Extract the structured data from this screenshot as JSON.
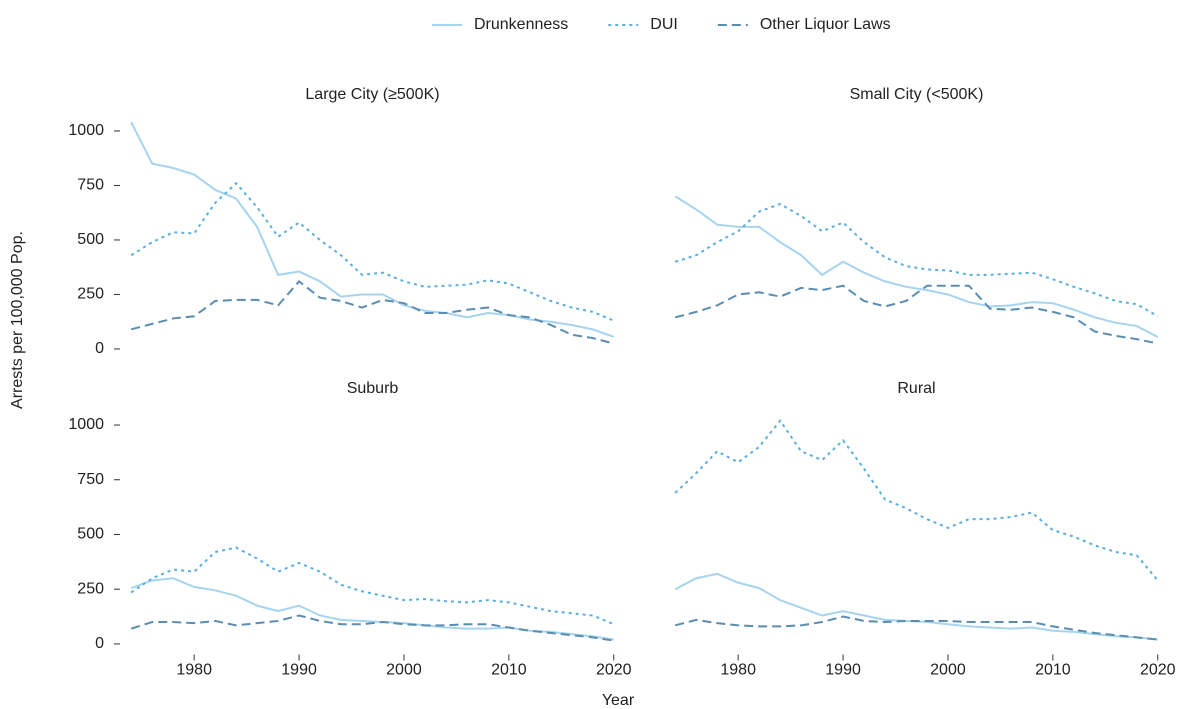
{
  "x_label": "Year",
  "y_label": "Arrests per 100,000 Pop.",
  "chart_data": [
    {
      "type": "line",
      "title": "Large City (≥500K)",
      "x": [
        1974,
        1976,
        1978,
        1980,
        1982,
        1984,
        1986,
        1988,
        1990,
        1992,
        1994,
        1996,
        1998,
        2000,
        2002,
        2004,
        2006,
        2008,
        2010,
        2012,
        2014,
        2016,
        2018,
        2020
      ],
      "series": [
        {
          "name": "Drunkenness",
          "color": "#a6d4f0",
          "dash": "solid",
          "values": [
            1040,
            850,
            830,
            800,
            730,
            690,
            560,
            340,
            355,
            310,
            240,
            250,
            250,
            200,
            175,
            165,
            145,
            165,
            155,
            135,
            125,
            110,
            90,
            55
          ]
        },
        {
          "name": "DUI",
          "color": "#5aaee0",
          "dash": "dotted",
          "values": [
            430,
            490,
            535,
            530,
            670,
            760,
            650,
            515,
            580,
            500,
            430,
            340,
            350,
            310,
            285,
            290,
            295,
            315,
            300,
            260,
            220,
            190,
            170,
            130
          ]
        },
        {
          "name": "Other Liquor Laws",
          "color": "#5b8db0",
          "dash": "dashed",
          "values": [
            90,
            115,
            140,
            150,
            220,
            225,
            225,
            200,
            310,
            235,
            220,
            190,
            225,
            210,
            165,
            165,
            180,
            190,
            155,
            145,
            110,
            65,
            50,
            25
          ]
        }
      ],
      "xlim": [
        1973.5,
        2020.5
      ],
      "ylim": [
        -30,
        1070
      ],
      "yticks": [
        0,
        250,
        500,
        750,
        1000
      ]
    },
    {
      "type": "line",
      "title": "Small City (<500K)",
      "x": [
        1974,
        1976,
        1978,
        1980,
        1982,
        1984,
        1986,
        1988,
        1990,
        1992,
        1994,
        1996,
        1998,
        2000,
        2002,
        2004,
        2006,
        2008,
        2010,
        2012,
        2014,
        2016,
        2018,
        2020
      ],
      "series": [
        {
          "name": "Drunkenness",
          "color": "#a6d4f0",
          "dash": "solid",
          "values": [
            700,
            640,
            570,
            560,
            560,
            490,
            430,
            340,
            400,
            350,
            310,
            285,
            270,
            250,
            215,
            195,
            200,
            215,
            210,
            180,
            145,
            120,
            105,
            55
          ]
        },
        {
          "name": "DUI",
          "color": "#5aaee0",
          "dash": "dotted",
          "values": [
            400,
            430,
            490,
            540,
            630,
            665,
            610,
            540,
            580,
            490,
            420,
            380,
            365,
            360,
            340,
            340,
            345,
            350,
            320,
            285,
            255,
            220,
            205,
            150
          ]
        },
        {
          "name": "Other Liquor Laws",
          "color": "#5b8db0",
          "dash": "dashed",
          "values": [
            145,
            170,
            200,
            250,
            260,
            240,
            280,
            270,
            290,
            220,
            195,
            220,
            290,
            290,
            290,
            185,
            180,
            190,
            170,
            145,
            80,
            60,
            45,
            25
          ]
        }
      ],
      "xlim": [
        1973.5,
        2020.5
      ],
      "ylim": [
        -30,
        1070
      ]
    },
    {
      "type": "line",
      "title": "Suburb",
      "x": [
        1974,
        1976,
        1978,
        1980,
        1982,
        1984,
        1986,
        1988,
        1990,
        1992,
        1994,
        1996,
        1998,
        2000,
        2002,
        2004,
        2006,
        2008,
        2010,
        2012,
        2014,
        2016,
        2018,
        2020
      ],
      "series": [
        {
          "name": "Drunkenness",
          "color": "#a6d4f0",
          "dash": "solid",
          "values": [
            255,
            290,
            300,
            260,
            245,
            220,
            175,
            150,
            175,
            130,
            110,
            105,
            100,
            95,
            85,
            75,
            70,
            70,
            75,
            60,
            55,
            45,
            35,
            20
          ]
        },
        {
          "name": "DUI",
          "color": "#5aaee0",
          "dash": "dotted",
          "values": [
            235,
            300,
            340,
            330,
            420,
            440,
            390,
            330,
            370,
            330,
            270,
            240,
            220,
            200,
            205,
            195,
            190,
            200,
            190,
            170,
            150,
            140,
            130,
            90
          ]
        },
        {
          "name": "Other Liquor Laws",
          "color": "#5b8db0",
          "dash": "dashed",
          "values": [
            70,
            100,
            100,
            95,
            105,
            85,
            95,
            105,
            130,
            105,
            90,
            90,
            100,
            90,
            85,
            85,
            90,
            90,
            75,
            60,
            50,
            40,
            30,
            15
          ]
        }
      ],
      "xlim": [
        1973.5,
        2020.5
      ],
      "ylim": [
        -30,
        1070
      ],
      "yticks": [
        0,
        250,
        500,
        750,
        1000
      ],
      "xticks": [
        1980,
        1990,
        2000,
        2010,
        2020
      ]
    },
    {
      "type": "line",
      "title": "Rural",
      "x": [
        1974,
        1976,
        1978,
        1980,
        1982,
        1984,
        1986,
        1988,
        1990,
        1992,
        1994,
        1996,
        1998,
        2000,
        2002,
        2004,
        2006,
        2008,
        2010,
        2012,
        2014,
        2016,
        2018,
        2020
      ],
      "series": [
        {
          "name": "Drunkenness",
          "color": "#a6d4f0",
          "dash": "solid",
          "values": [
            250,
            300,
            320,
            280,
            255,
            200,
            165,
            130,
            150,
            130,
            110,
            105,
            100,
            90,
            80,
            75,
            70,
            75,
            60,
            55,
            45,
            35,
            30,
            20
          ]
        },
        {
          "name": "DUI",
          "color": "#5aaee0",
          "dash": "dotted",
          "values": [
            690,
            780,
            880,
            830,
            900,
            1020,
            880,
            840,
            930,
            800,
            660,
            620,
            570,
            530,
            570,
            570,
            580,
            600,
            520,
            490,
            450,
            420,
            405,
            290
          ]
        },
        {
          "name": "Other Liquor Laws",
          "color": "#5b8db0",
          "dash": "dashed",
          "values": [
            85,
            110,
            95,
            85,
            80,
            80,
            85,
            100,
            125,
            105,
            100,
            105,
            105,
            105,
            100,
            100,
            100,
            100,
            80,
            65,
            50,
            40,
            30,
            20
          ]
        }
      ],
      "xlim": [
        1973.5,
        2020.5
      ],
      "ylim": [
        -30,
        1070
      ],
      "xticks": [
        1980,
        1990,
        2000,
        2010,
        2020
      ]
    }
  ]
}
